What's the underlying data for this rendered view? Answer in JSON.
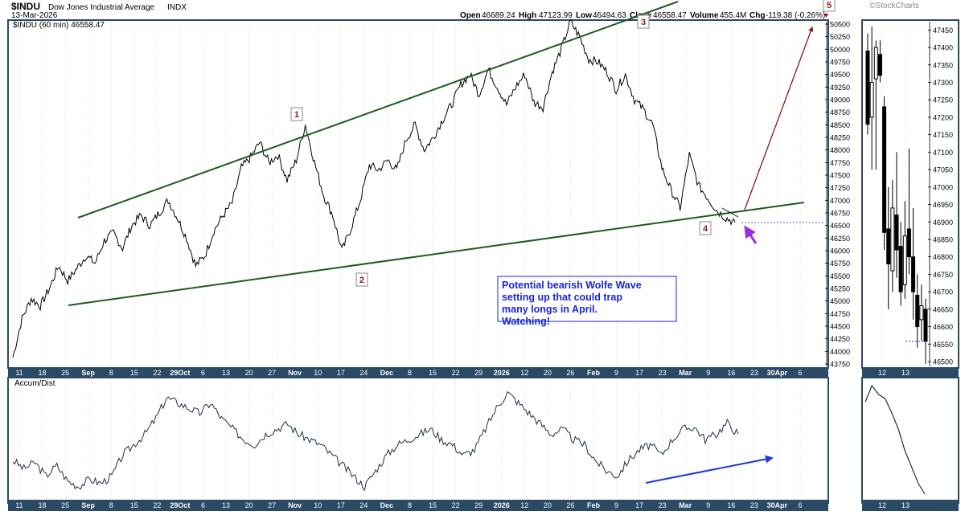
{
  "header": {
    "symbol": "$INDU",
    "name": "Dow Jones Industrial Average",
    "exchange": "INDX",
    "date": "13-Mar-2026",
    "brand": "©StockCharts",
    "stats": {
      "open_label": "Open",
      "open": "46689.24",
      "high_label": "High",
      "high": "47123.99",
      "low_label": "Low",
      "low": "46494.63",
      "close_label": "Close",
      "close": "46558.47",
      "volume_label": "Volume",
      "volume": "455.4M",
      "chg_label": "Chg",
      "chg": "-119.38 (-0.26%)"
    }
  },
  "colors": {
    "frame": "#2b4a66",
    "price": "#000000",
    "channel": "#1e5a1e",
    "target_arrow": "#8b1a1a",
    "purple_arrow": "#9b30d9",
    "blue_arrow": "#1a3adb",
    "accum_line": "#1c2e48",
    "annotation_text": "#1a24e0",
    "label_red": "#8b1a1a"
  },
  "chart_data": [
    {
      "type": "line",
      "title": "$INDU (60 min) 46558.47",
      "ylim": [
        43750,
        50600
      ],
      "y_ticks": [
        43750,
        44000,
        44250,
        44500,
        44750,
        45000,
        45250,
        45500,
        45750,
        46000,
        46250,
        46500,
        46750,
        47000,
        47250,
        47500,
        47750,
        48000,
        48250,
        48500,
        48750,
        49000,
        49250,
        49500,
        49750,
        50000,
        50250,
        50500
      ],
      "x_tick_labels": [
        "11",
        "18",
        "25",
        "Sep",
        "8",
        "15",
        "22",
        "29Oct",
        "6",
        "13",
        "20",
        "27",
        "Nov",
        "10",
        "17",
        "24",
        "Dec",
        "8",
        "15",
        "22",
        "29",
        "2026",
        "12",
        "20",
        "26",
        "Feb",
        "9",
        "17",
        "23",
        "Mar",
        "9",
        "16",
        "23",
        "30Apr",
        "6"
      ],
      "x_tick_bold": [
        "Sep",
        "29Oct",
        "Nov",
        "Dec",
        "2026",
        "Feb",
        "Mar",
        "30Apr"
      ],
      "series": [
        {
          "values": [
            43880,
            44650,
            45050,
            44900,
            45250,
            45700,
            45400,
            45650,
            45900,
            45750,
            46200,
            46350,
            46050,
            46500,
            46700,
            46500,
            46750,
            47000,
            46650,
            46250,
            45700,
            45900,
            46400,
            46700,
            46950,
            47650,
            47850,
            48150,
            47750,
            47900,
            47400,
            47800,
            48500,
            47750,
            47100,
            46700,
            46000,
            46450,
            47000,
            47700,
            47600,
            47800,
            47600,
            48200,
            48500,
            48000,
            48250,
            48600,
            48900,
            49300,
            49500,
            49100,
            49600,
            49250,
            48900,
            49250,
            49500,
            48950,
            48850,
            49550,
            50000,
            50550,
            50250,
            49800,
            49750,
            49550,
            49200,
            49500,
            49000,
            48800,
            48500,
            47650,
            47200,
            46850,
            47900,
            47300,
            47050,
            46800,
            46650,
            46558
          ]
        }
      ],
      "annotations": [
        {
          "label": "1",
          "color": "#8b1a1a"
        },
        {
          "label": "2",
          "color": "#8b1a1a"
        },
        {
          "label": "3",
          "color": "#8b1a1a"
        },
        {
          "label": "4",
          "color": "#8b1a1a"
        },
        {
          "label": "5",
          "color": "#8b1a1a"
        }
      ],
      "note": "Potential bearish Wolfe Wave setting up that could trap many longs in April. Watching!"
    },
    {
      "type": "bar",
      "title": "",
      "ylim": [
        46470,
        47480
      ],
      "y_ticks": [
        46500,
        46550,
        46600,
        46650,
        46700,
        46750,
        46800,
        46850,
        46900,
        46950,
        47000,
        47050,
        47100,
        47150,
        47200,
        47250,
        47300,
        47350,
        47400,
        47450
      ],
      "x_tick_labels": [
        "12",
        "13"
      ],
      "candles": [
        {
          "o": 47390,
          "h": 47440,
          "l": 47150,
          "c": 47180
        },
        {
          "o": 47200,
          "h": 47460,
          "l": 47050,
          "c": 47300
        },
        {
          "o": 47310,
          "h": 47420,
          "l": 47050,
          "c": 47400
        },
        {
          "o": 47380,
          "h": 47420,
          "l": 47300,
          "c": 47320
        },
        {
          "o": 47230,
          "h": 47260,
          "l": 46820,
          "c": 46870
        },
        {
          "o": 46880,
          "h": 47000,
          "l": 46650,
          "c": 46780
        },
        {
          "o": 46760,
          "h": 47020,
          "l": 46700,
          "c": 46940
        },
        {
          "o": 46920,
          "h": 47100,
          "l": 46740,
          "c": 46820
        },
        {
          "o": 46830,
          "h": 46900,
          "l": 46660,
          "c": 46700
        },
        {
          "o": 46720,
          "h": 46960,
          "l": 46680,
          "c": 46860
        },
        {
          "o": 46880,
          "h": 47110,
          "l": 46750,
          "c": 46800
        },
        {
          "o": 46800,
          "h": 46940,
          "l": 46620,
          "c": 46700
        },
        {
          "o": 46690,
          "h": 46750,
          "l": 46540,
          "c": 46600
        },
        {
          "o": 46620,
          "h": 46720,
          "l": 46560,
          "c": 46660
        },
        {
          "o": 46650,
          "h": 46680,
          "l": 46494,
          "c": 46558
        }
      ]
    },
    {
      "type": "line",
      "title": "Accum/Dist",
      "x_tick_labels": [
        "11",
        "18",
        "25",
        "Sep",
        "8",
        "15",
        "22",
        "29Oct",
        "6",
        "13",
        "20",
        "27",
        "Nov",
        "10",
        "17",
        "24",
        "Dec",
        "8",
        "15",
        "22",
        "29",
        "2026",
        "12",
        "20",
        "26",
        "Feb",
        "9",
        "17",
        "23",
        "Mar",
        "9",
        "16",
        "23",
        "30Apr",
        "6"
      ],
      "x_tick_bold": [
        "Sep",
        "29Oct",
        "Nov",
        "Dec",
        "2026",
        "Feb",
        "Mar",
        "30Apr"
      ],
      "series": [
        {
          "values": [
            30,
            22,
            28,
            15,
            25,
            10,
            5,
            12,
            8,
            15,
            35,
            45,
            55,
            70,
            90,
            85,
            80,
            75,
            85,
            70,
            60,
            50,
            45,
            55,
            60,
            65,
            55,
            50,
            45,
            35,
            25,
            15,
            5,
            20,
            35,
            45,
            50,
            55,
            60,
            50,
            45,
            35,
            40,
            60,
            80,
            95,
            85,
            75,
            65,
            55,
            60,
            50,
            45,
            30,
            20,
            15,
            30,
            40,
            45,
            35,
            50,
            60,
            62,
            50,
            55,
            66,
            55
          ]
        },
        {
          "values": [
            15,
            22,
            32
          ]
        }
      ]
    },
    {
      "type": "line",
      "title": "",
      "x_tick_labels": [
        "12",
        "13"
      ],
      "series": [
        {
          "values": [
            85,
            100,
            92,
            88,
            75,
            60,
            40,
            25,
            10,
            0
          ]
        }
      ]
    }
  ]
}
